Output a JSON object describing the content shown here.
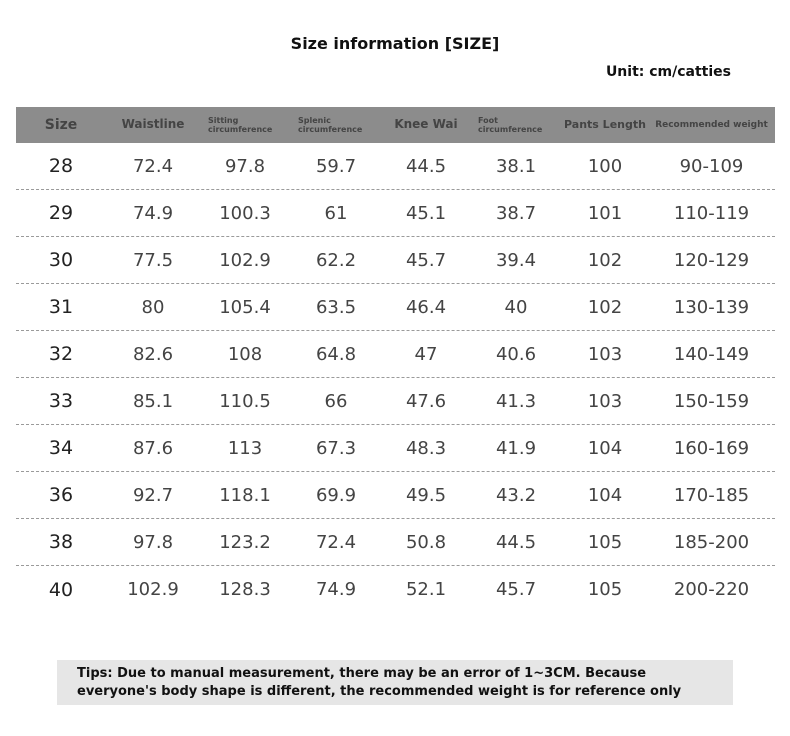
{
  "header": {
    "title": "Size information [SIZE]",
    "unit": "Unit: cm/catties"
  },
  "table": {
    "columns": [
      "Size",
      "Waistline",
      "Sitting circumference",
      "Splenic circumference",
      "Knee Wai",
      "Foot circumference",
      "Pants Length",
      "Recommended weight"
    ],
    "rows": [
      [
        "28",
        "72.4",
        "97.8",
        "59.7",
        "44.5",
        "38.1",
        "100",
        "90-109"
      ],
      [
        "29",
        "74.9",
        "100.3",
        "61",
        "45.1",
        "38.7",
        "101",
        "110-119"
      ],
      [
        "30",
        "77.5",
        "102.9",
        "62.2",
        "45.7",
        "39.4",
        "102",
        "120-129"
      ],
      [
        "31",
        "80",
        "105.4",
        "63.5",
        "46.4",
        "40",
        "102",
        "130-139"
      ],
      [
        "32",
        "82.6",
        "108",
        "64.8",
        "47",
        "40.6",
        "103",
        "140-149"
      ],
      [
        "33",
        "85.1",
        "110.5",
        "66",
        "47.6",
        "41.3",
        "103",
        "150-159"
      ],
      [
        "34",
        "87.6",
        "113",
        "67.3",
        "48.3",
        "41.9",
        "104",
        "160-169"
      ],
      [
        "36",
        "92.7",
        "118.1",
        "69.9",
        "49.5",
        "43.2",
        "104",
        "170-185"
      ],
      [
        "38",
        "97.8",
        "123.2",
        "72.4",
        "50.8",
        "44.5",
        "105",
        "185-200"
      ],
      [
        "40",
        "102.9",
        "128.3",
        "74.9",
        "52.1",
        "45.7",
        "105",
        "200-220"
      ]
    ]
  },
  "tips": "Tips: Due to manual measurement, there may be an error of 1~3CM. Because everyone's body shape is different, the recommended weight is for reference only"
}
